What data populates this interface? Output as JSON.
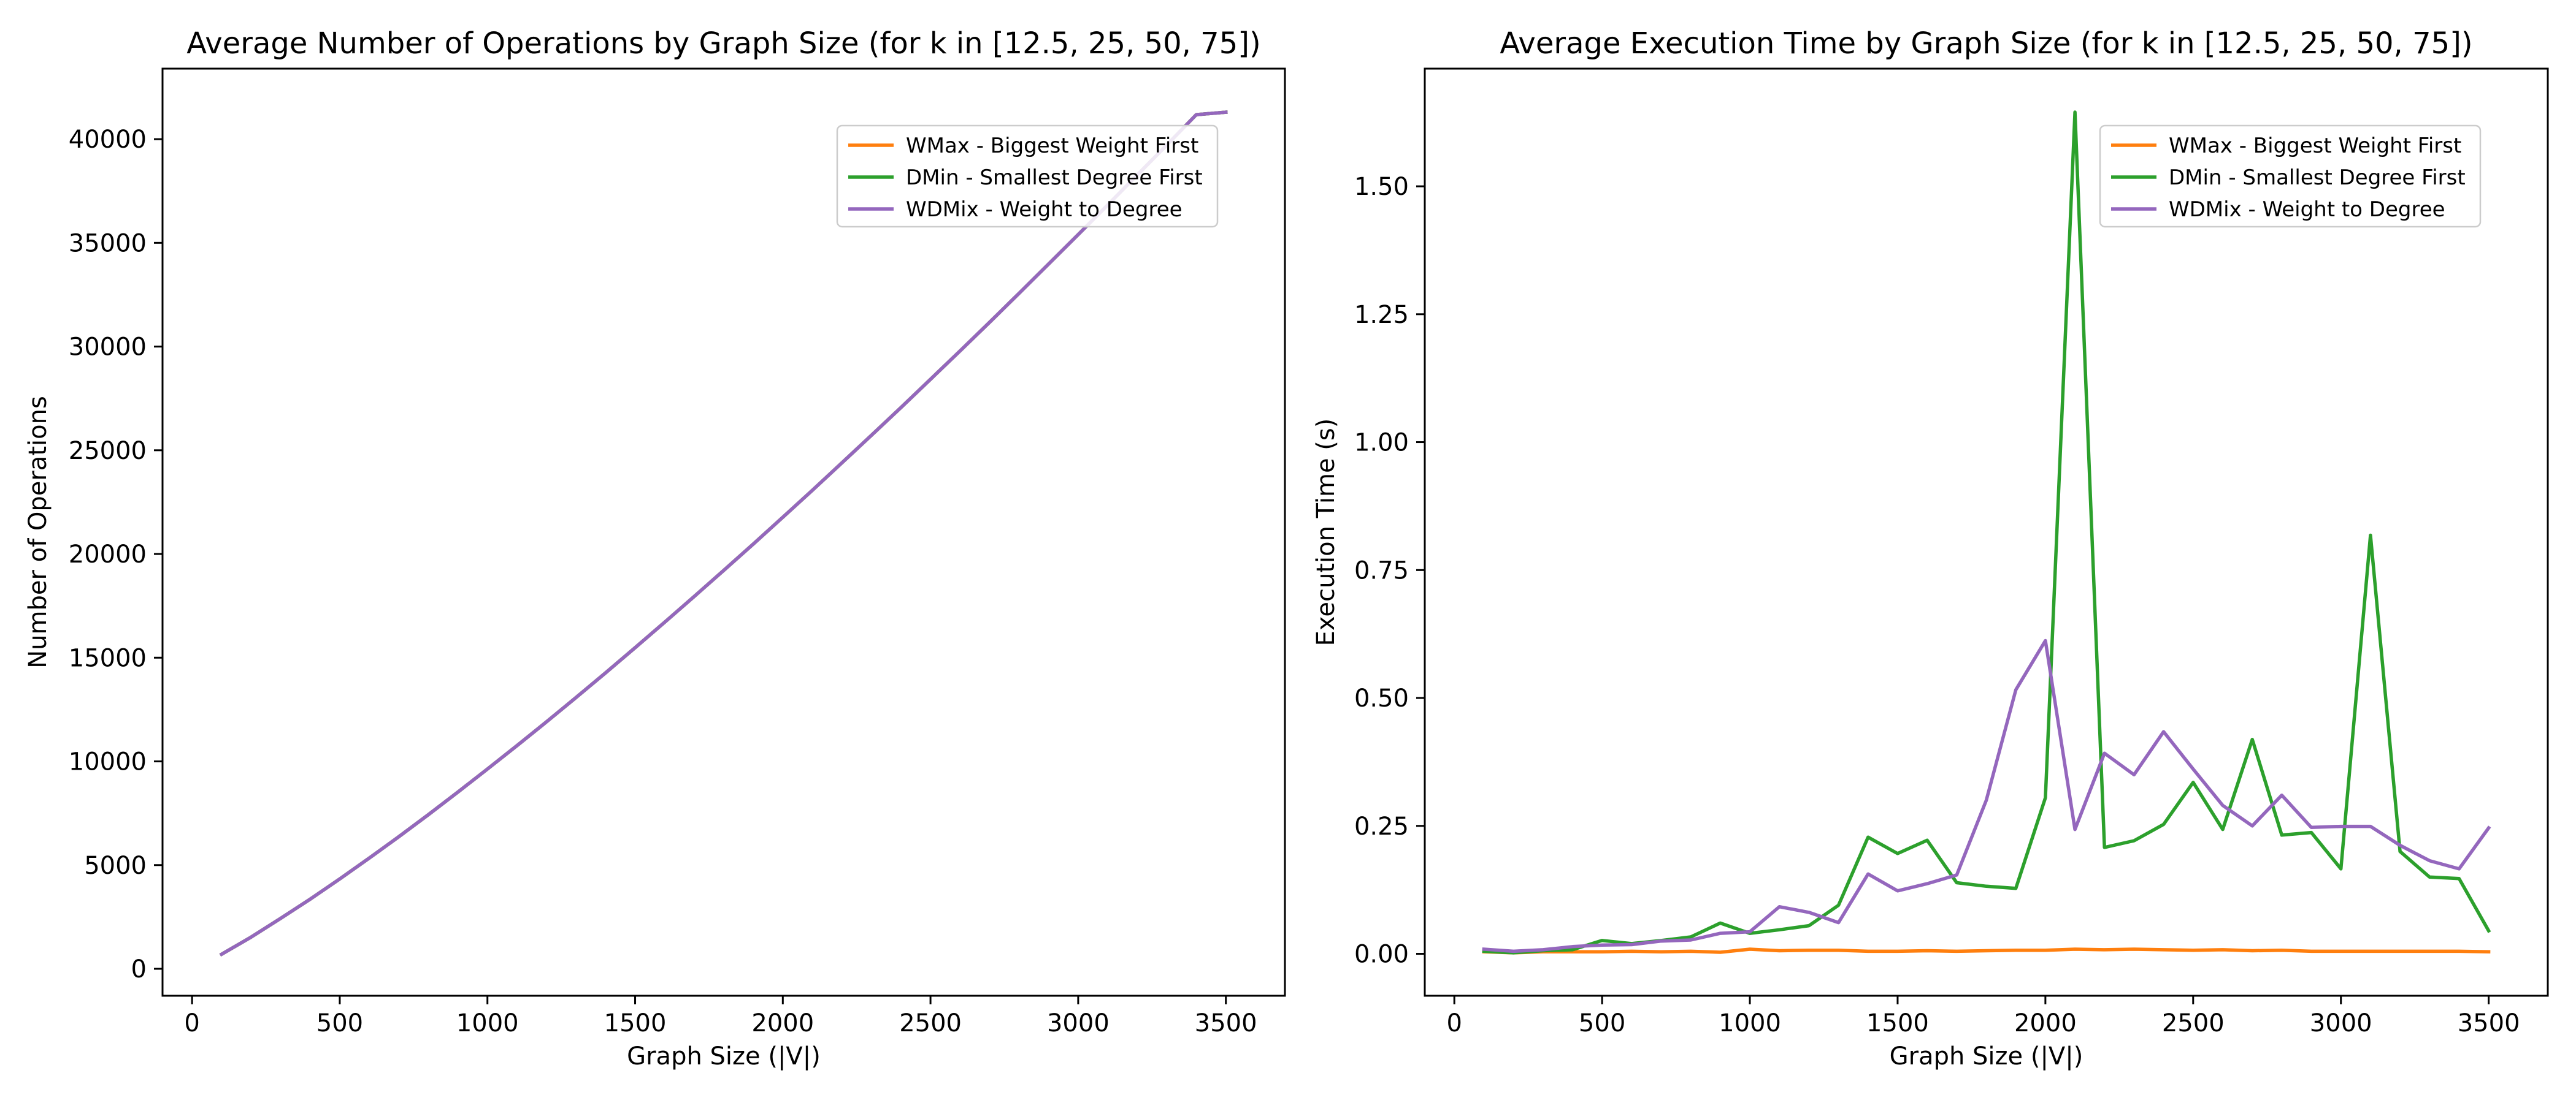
{
  "chart_data": [
    {
      "type": "line",
      "title": "Average Number of Operations by Graph Size (for k in [12.5, 25, 50, 75])",
      "xlabel": "Graph Size (|V|)",
      "ylabel": "Number of Operations",
      "xlim": [
        -100,
        3700
      ],
      "ylim": [
        -1300,
        43400
      ],
      "xticks": [
        0,
        500,
        1000,
        1500,
        2000,
        2500,
        3000,
        3500
      ],
      "yticks": [
        0,
        5000,
        10000,
        15000,
        20000,
        25000,
        30000,
        35000,
        40000
      ],
      "grid": false,
      "legend_position": "top-right",
      "x": [
        100,
        200,
        300,
        400,
        500,
        600,
        700,
        800,
        900,
        1000,
        1100,
        1200,
        1300,
        1400,
        1500,
        1600,
        1700,
        1800,
        1900,
        2000,
        2100,
        2200,
        2300,
        2400,
        2500,
        2600,
        2700,
        2800,
        2900,
        3000,
        3100,
        3200,
        3300,
        3400,
        3500
      ],
      "series": [
        {
          "name": "WMax - Biggest Weight First",
          "color": "#ff7f0e",
          "values": [
            700,
            1530,
            2430,
            3360,
            4330,
            5340,
            6370,
            7430,
            8520,
            9630,
            10760,
            11910,
            13080,
            14270,
            15480,
            16710,
            17950,
            19210,
            20480,
            21770,
            23070,
            24390,
            25720,
            27060,
            28420,
            29790,
            31170,
            32570,
            33980,
            35400,
            36830,
            38270,
            39720,
            41180,
            41300
          ]
        },
        {
          "name": "DMin - Smallest Degree First",
          "color": "#2ca02c",
          "values": [
            700,
            1530,
            2430,
            3360,
            4330,
            5340,
            6370,
            7430,
            8520,
            9630,
            10760,
            11910,
            13080,
            14270,
            15480,
            16710,
            17950,
            19210,
            20480,
            21770,
            23070,
            24390,
            25720,
            27060,
            28420,
            29790,
            31170,
            32570,
            33980,
            35400,
            36830,
            38270,
            39720,
            41180,
            41300
          ]
        },
        {
          "name": "WDMix - Weight to Degree",
          "color": "#9467bd",
          "values": [
            700,
            1530,
            2430,
            3360,
            4330,
            5340,
            6370,
            7430,
            8520,
            9630,
            10760,
            11910,
            13080,
            14270,
            15480,
            16710,
            17950,
            19210,
            20480,
            21770,
            23070,
            24390,
            25720,
            27060,
            28420,
            29790,
            31170,
            32570,
            33980,
            35400,
            36830,
            38270,
            39720,
            41180,
            41300
          ]
        }
      ]
    },
    {
      "type": "line",
      "title": "Average Execution Time by Graph Size (for k in [12.5, 25, 50, 75])",
      "xlabel": "Graph Size (|V|)",
      "ylabel": "Execution Time (s)",
      "xlim": [
        -100,
        3700
      ],
      "ylim": [
        -0.082,
        1.73
      ],
      "xticks": [
        0,
        500,
        1000,
        1500,
        2000,
        2500,
        3000,
        3500
      ],
      "yticks": [
        0.0,
        0.25,
        0.5,
        0.75,
        1.0,
        1.25,
        1.5
      ],
      "ytick_labels": [
        "0.00",
        "0.25",
        "0.50",
        "0.75",
        "1.00",
        "1.25",
        "1.50"
      ],
      "grid": false,
      "legend_position": "top-right",
      "x": [
        100,
        200,
        300,
        400,
        500,
        600,
        700,
        800,
        900,
        1000,
        1100,
        1200,
        1300,
        1400,
        1500,
        1600,
        1700,
        1800,
        1900,
        2000,
        2100,
        2200,
        2300,
        2400,
        2500,
        2600,
        2700,
        2800,
        2900,
        3000,
        3100,
        3200,
        3300,
        3400,
        3500
      ],
      "series": [
        {
          "name": "WMax - Biggest Weight First",
          "color": "#ff7f0e",
          "values": [
            0.004,
            0.002,
            0.004,
            0.004,
            0.004,
            0.005,
            0.004,
            0.005,
            0.003,
            0.009,
            0.006,
            0.007,
            0.007,
            0.005,
            0.005,
            0.006,
            0.005,
            0.006,
            0.007,
            0.007,
            0.009,
            0.008,
            0.009,
            0.008,
            0.007,
            0.008,
            0.006,
            0.007,
            0.005,
            0.005,
            0.005,
            0.005,
            0.005,
            0.005,
            0.004
          ]
        },
        {
          "name": "DMin - Smallest Degree First",
          "color": "#2ca02c",
          "values": [
            0.005,
            0.002,
            0.006,
            0.008,
            0.026,
            0.02,
            0.026,
            0.033,
            0.06,
            0.04,
            0.047,
            0.055,
            0.095,
            0.228,
            0.196,
            0.222,
            0.139,
            0.132,
            0.128,
            0.305,
            1.645,
            0.208,
            0.221,
            0.253,
            0.335,
            0.243,
            0.419,
            0.232,
            0.237,
            0.166,
            0.818,
            0.2,
            0.15,
            0.147,
            0.045
          ]
        },
        {
          "name": "WDMix - Weight to Degree",
          "color": "#9467bd",
          "values": [
            0.009,
            0.005,
            0.008,
            0.014,
            0.017,
            0.018,
            0.025,
            0.027,
            0.04,
            0.043,
            0.092,
            0.081,
            0.061,
            0.156,
            0.123,
            0.137,
            0.154,
            0.3,
            0.516,
            0.612,
            0.243,
            0.392,
            0.35,
            0.434,
            0.361,
            0.29,
            0.25,
            0.31,
            0.247,
            0.249,
            0.249,
            0.212,
            0.182,
            0.166,
            0.246
          ]
        }
      ]
    }
  ]
}
